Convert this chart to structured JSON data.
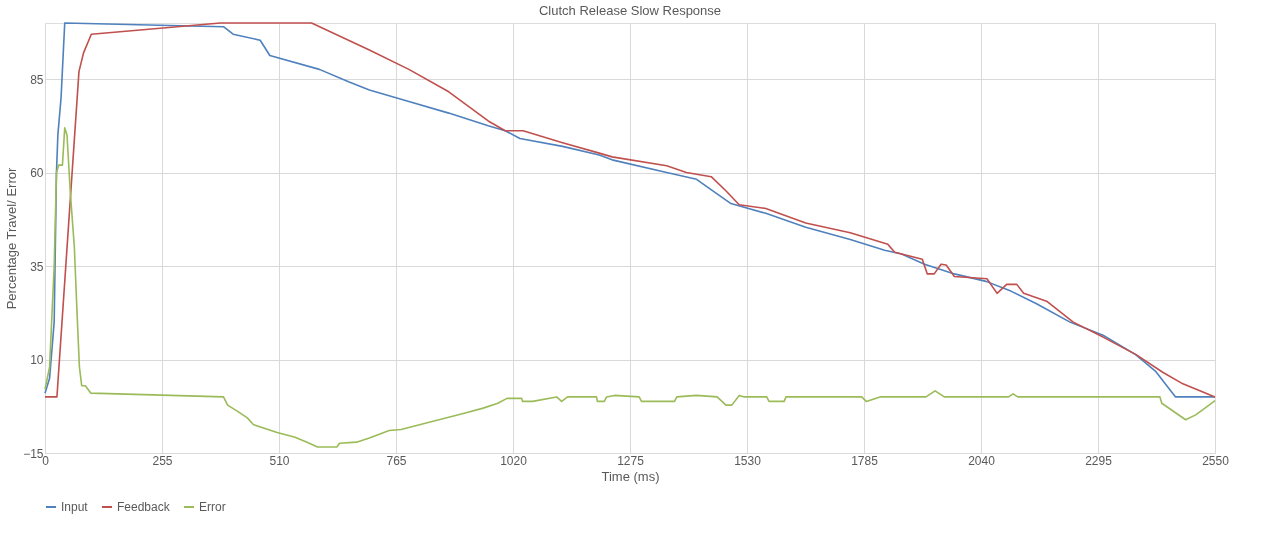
{
  "chart_data": {
    "type": "line",
    "title": "Clutch Release Slow Response",
    "xlabel": "Time (ms)",
    "ylabel": "Percentage Travel/ Error",
    "xlim": [
      0,
      2550
    ],
    "xticks": [
      0,
      255,
      510,
      765,
      1020,
      1275,
      1530,
      1785,
      2040,
      2295,
      2550
    ],
    "ylim": [
      -15,
      100
    ],
    "yticks": [
      -15,
      10,
      35,
      60,
      85
    ],
    "grid": true,
    "legend": "bottom",
    "marker": "none",
    "line_style": "solid",
    "series": [
      {
        "name": "Input",
        "color": "#4f81bd",
        "x": [
          0,
          10,
          20,
          25,
          28,
          35,
          43,
          389,
          410,
          469,
          490,
          598,
          663,
          707,
          793,
          880,
          966,
          1003,
          1035,
          1128,
          1208,
          1236,
          1355,
          1420,
          1495,
          1571,
          1658,
          1755,
          1830,
          1867,
          1917,
          1982,
          2051,
          2105,
          2161,
          2234,
          2306,
          2377,
          2420,
          2464,
          2550
        ],
        "values": [
          1,
          5,
          20,
          60,
          70,
          80,
          100,
          99,
          97,
          95.4,
          91.3,
          87.6,
          84.2,
          82.1,
          79,
          75.9,
          72.5,
          71.2,
          69.1,
          67,
          64.7,
          63.4,
          60,
          58.2,
          51.7,
          49.1,
          45.4,
          42.1,
          39.2,
          38.2,
          35.5,
          32.9,
          30.9,
          28.3,
          24.9,
          20,
          16.5,
          11.3,
          6.9,
          0,
          0
        ]
      },
      {
        "name": "Feedback",
        "color": "#c0504d",
        "x": [
          0,
          26,
          74,
          84,
          101,
          382,
          581,
          707,
          793,
          880,
          966,
          1003,
          1042,
          1128,
          1208,
          1236,
          1355,
          1398,
          1452,
          1485,
          1513,
          1571,
          1658,
          1755,
          1837,
          1852,
          1912,
          1923,
          1938,
          1953,
          1964,
          1982,
          2053,
          2075,
          2096,
          2118,
          2133,
          2183,
          2241,
          2306,
          2378,
          2436,
          2480,
          2550
        ],
        "values": [
          0,
          0,
          87,
          92,
          97,
          100,
          100,
          92.8,
          87.6,
          81.6,
          73.8,
          71.2,
          71.2,
          68,
          65.2,
          64.2,
          61.8,
          60,
          58.9,
          55,
          51.4,
          50.4,
          46.5,
          43.9,
          40.8,
          38.7,
          36.8,
          32.9,
          32.9,
          35.5,
          35.3,
          32.2,
          31.6,
          27.7,
          30.1,
          30.1,
          27.7,
          25.6,
          20,
          16,
          11.3,
          6.6,
          3.5,
          0
        ]
      },
      {
        "name": "Error",
        "color": "#9bbb59",
        "x": [
          0,
          10,
          20,
          25,
          30,
          38,
          43,
          48,
          55,
          64,
          70,
          75,
          80,
          88,
          100,
          389,
          398,
          419,
          441,
          454,
          506,
          545,
          571,
          594,
          636,
          642,
          679,
          707,
          750,
          776,
          850,
          916,
          955,
          987,
          1007,
          1039,
          1041,
          1063,
          1115,
          1126,
          1139,
          1202,
          1204,
          1219,
          1224,
          1241,
          1295,
          1300,
          1372,
          1377,
          1420,
          1465,
          1484,
          1497,
          1513,
          1524,
          1573,
          1578,
          1611,
          1615,
          1780,
          1790,
          1820,
          1920,
          1940,
          1960,
          2100,
          2110,
          2120,
          2430,
          2434,
          2486,
          2508,
          2537,
          2550
        ],
        "values": [
          2,
          8,
          35,
          60,
          62,
          62,
          72,
          70,
          55,
          40,
          22,
          8,
          3,
          3,
          1,
          0,
          -2.2,
          -3.8,
          -5.6,
          -7.4,
          -9.5,
          -10.8,
          -12.1,
          -13.4,
          -13.4,
          -12.4,
          -12.1,
          -11,
          -9,
          -8.7,
          -6.4,
          -4.3,
          -3,
          -1.7,
          -0.4,
          -0.4,
          -1.2,
          -1.2,
          0,
          -1.2,
          0,
          0,
          -1.2,
          -1.2,
          0,
          0.4,
          0,
          -1.2,
          -1.2,
          0,
          0.4,
          0,
          -2.2,
          -2.2,
          0.4,
          0,
          0,
          -1.2,
          -1.2,
          0,
          0,
          -1.2,
          0,
          0,
          1.6,
          0,
          0,
          0.8,
          0,
          0,
          -1.7,
          -6.1,
          -4.8,
          -2.2,
          -1
        ]
      }
    ]
  }
}
